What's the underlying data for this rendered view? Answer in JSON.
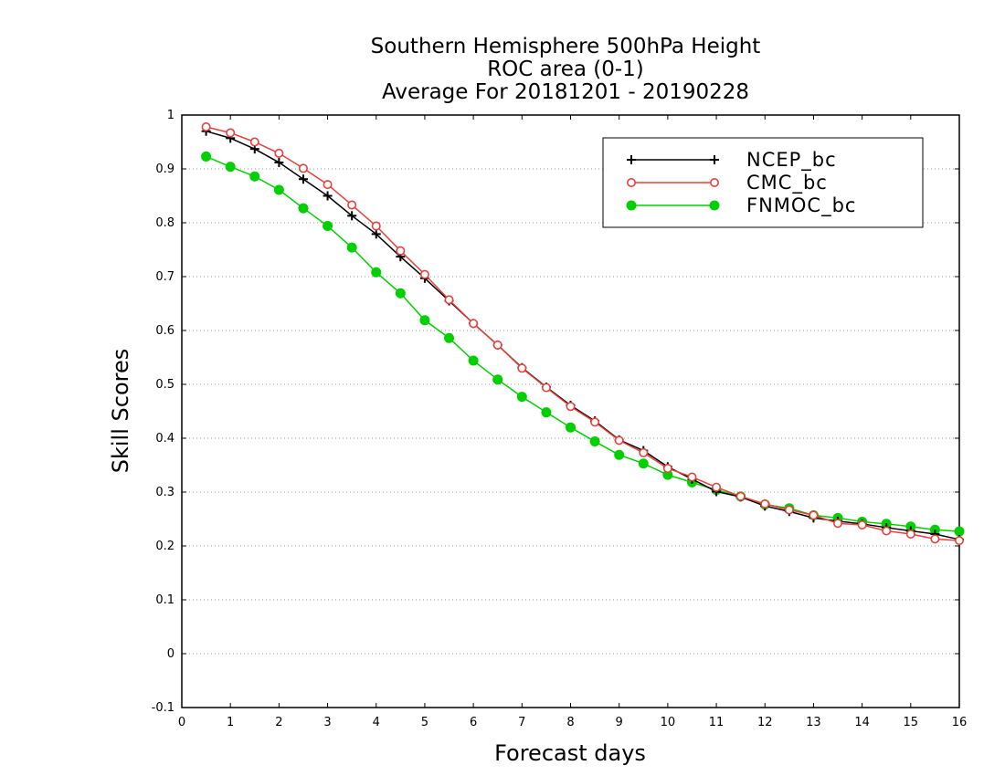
{
  "chart_data": {
    "type": "line",
    "title": [
      "Southern Hemisphere 500hPa Height",
      "ROC area (0-1)",
      "Average For 20181201 - 20190228"
    ],
    "xlabel": "Forecast days",
    "ylabel": "Skill Scores",
    "xlim": [
      0,
      16
    ],
    "ylim": [
      -0.1,
      1
    ],
    "xticks": [
      0,
      1,
      2,
      3,
      4,
      5,
      6,
      7,
      8,
      9,
      10,
      11,
      12,
      13,
      14,
      15,
      16
    ],
    "xtick_labels": [
      "0",
      "1",
      "2",
      "3",
      "4",
      "5",
      "6",
      "7",
      "8",
      "9",
      "10",
      "11",
      "12",
      "13",
      "14",
      "15",
      "16"
    ],
    "yticks": [
      -0.1,
      0,
      0.1,
      0.2,
      0.3,
      0.4,
      0.5,
      0.6,
      0.7,
      0.8,
      0.9,
      1
    ],
    "ytick_labels": [
      "-0.1",
      "0",
      "0.1",
      "0.2",
      "0.3",
      "0.4",
      "0.5",
      "0.6",
      "0.7",
      "0.8",
      "0.9",
      "1"
    ],
    "grid": "horizontal dotted",
    "legend_position": "top-right",
    "x": [
      0.5,
      1,
      1.5,
      2,
      2.5,
      3,
      3.5,
      4,
      4.5,
      5,
      5.5,
      6,
      6.5,
      7,
      7.5,
      8,
      8.5,
      9,
      9.5,
      10,
      10.5,
      11,
      11.5,
      12,
      12.5,
      13,
      13.5,
      14,
      14.5,
      15,
      15.5,
      16
    ],
    "series": [
      {
        "name": "NCEP_bc",
        "color": "#000000",
        "marker": "plus",
        "values": [
          0.97,
          0.957,
          0.937,
          0.912,
          0.881,
          0.85,
          0.813,
          0.779,
          0.737,
          0.697,
          0.655,
          0.613,
          0.573,
          0.531,
          0.495,
          0.461,
          0.432,
          0.397,
          0.377,
          0.347,
          0.324,
          0.301,
          0.291,
          0.274,
          0.264,
          0.252,
          0.246,
          0.241,
          0.234,
          0.228,
          0.222,
          0.212
        ]
      },
      {
        "name": "CMC_bc",
        "color": "#e8403c",
        "marker": "open-circle",
        "values": [
          0.978,
          0.967,
          0.95,
          0.929,
          0.901,
          0.871,
          0.833,
          0.794,
          0.748,
          0.704,
          0.657,
          0.613,
          0.573,
          0.53,
          0.494,
          0.459,
          0.43,
          0.396,
          0.373,
          0.344,
          0.328,
          0.309,
          0.292,
          0.278,
          0.267,
          0.257,
          0.242,
          0.239,
          0.228,
          0.222,
          0.213,
          0.21
        ]
      },
      {
        "name": "FNMOC_bc",
        "color": "#00d000",
        "marker": "filled-circle",
        "values": [
          0.923,
          0.904,
          0.886,
          0.861,
          0.827,
          0.794,
          0.754,
          0.708,
          0.669,
          0.619,
          0.586,
          0.544,
          0.509,
          0.477,
          0.448,
          0.42,
          0.394,
          0.369,
          0.353,
          0.332,
          0.318,
          0.304,
          0.292,
          0.277,
          0.27,
          0.257,
          0.252,
          0.245,
          0.241,
          0.236,
          0.23,
          0.227
        ]
      }
    ]
  }
}
